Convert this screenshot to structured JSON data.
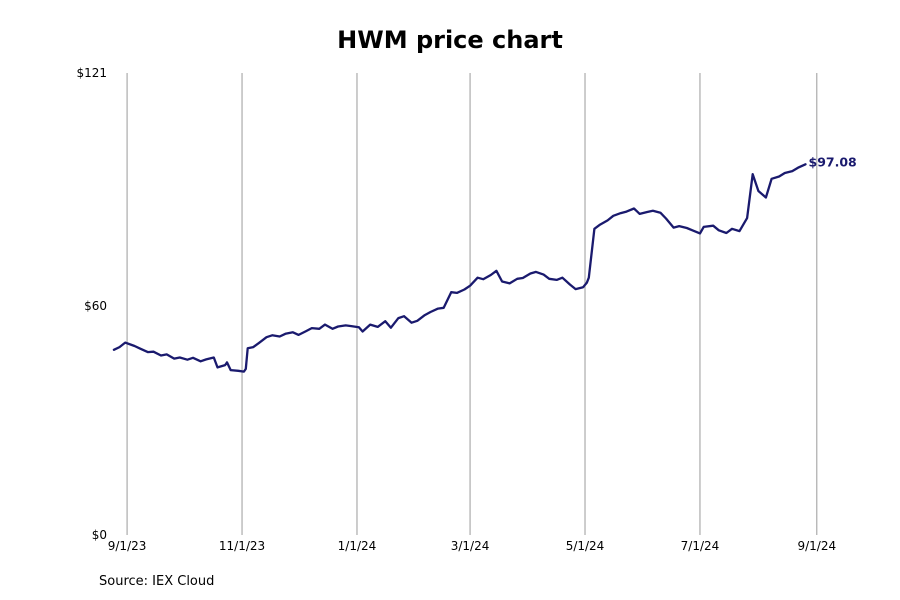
{
  "title": "HWM price chart",
  "source": "Source: IEX Cloud",
  "chart_data": {
    "type": "line",
    "title": "HWM price chart",
    "xlabel": "",
    "ylabel": "",
    "x_ticks": [
      "2023-09-01",
      "2023-11-01",
      "2024-01-01",
      "2024-03-01",
      "2024-05-01",
      "2024-07-01",
      "2024-09-01"
    ],
    "x_tick_labels": [
      "9/1/23",
      "11/1/23",
      "1/1/24",
      "3/1/24",
      "5/1/24",
      "7/1/24",
      "9/1/24"
    ],
    "y_ticks": [
      0,
      60,
      121
    ],
    "y_tick_labels": [
      "$0",
      "$60",
      "$121"
    ],
    "ylim": [
      0,
      121
    ],
    "xlim": [
      "2023-08-24",
      "2024-09-08"
    ],
    "grid": "vertical",
    "line_color": "#1a1a6e",
    "end_label": "$97.08",
    "series": [
      {
        "points": [
          [
            "2023-08-25",
            48.5
          ],
          [
            "2023-08-28",
            49.2
          ],
          [
            "2023-08-31",
            50.4
          ],
          [
            "2023-09-05",
            49.5
          ],
          [
            "2023-09-08",
            48.8
          ],
          [
            "2023-09-12",
            47.9
          ],
          [
            "2023-09-15",
            48.0
          ],
          [
            "2023-09-19",
            47.0
          ],
          [
            "2023-09-22",
            47.3
          ],
          [
            "2023-09-26",
            46.2
          ],
          [
            "2023-09-29",
            46.5
          ],
          [
            "2023-10-03",
            45.9
          ],
          [
            "2023-10-06",
            46.4
          ],
          [
            "2023-10-10",
            45.5
          ],
          [
            "2023-10-13",
            46.0
          ],
          [
            "2023-10-17",
            46.5
          ],
          [
            "2023-10-19",
            43.9
          ],
          [
            "2023-10-23",
            44.5
          ],
          [
            "2023-10-24",
            45.2
          ],
          [
            "2023-10-26",
            43.2
          ],
          [
            "2023-10-30",
            43.0
          ],
          [
            "2023-11-02",
            42.8
          ],
          [
            "2023-11-03",
            43.5
          ],
          [
            "2023-11-04",
            48.9
          ],
          [
            "2023-11-07",
            49.2
          ],
          [
            "2023-11-10",
            50.3
          ],
          [
            "2023-11-14",
            51.8
          ],
          [
            "2023-11-17",
            52.3
          ],
          [
            "2023-11-21",
            52.0
          ],
          [
            "2023-11-24",
            52.7
          ],
          [
            "2023-11-28",
            53.1
          ],
          [
            "2023-12-01",
            52.4
          ],
          [
            "2023-12-05",
            53.4
          ],
          [
            "2023-12-08",
            54.2
          ],
          [
            "2023-12-12",
            54.0
          ],
          [
            "2023-12-15",
            55.1
          ],
          [
            "2023-12-19",
            54.0
          ],
          [
            "2023-12-22",
            54.6
          ],
          [
            "2023-12-26",
            54.9
          ],
          [
            "2023-12-29",
            54.7
          ],
          [
            "2024-01-02",
            54.4
          ],
          [
            "2024-01-04",
            53.3
          ],
          [
            "2024-01-08",
            55.1
          ],
          [
            "2024-01-12",
            54.5
          ],
          [
            "2024-01-16",
            56.0
          ],
          [
            "2024-01-19",
            54.3
          ],
          [
            "2024-01-23",
            56.8
          ],
          [
            "2024-01-26",
            57.3
          ],
          [
            "2024-01-30",
            55.6
          ],
          [
            "2024-02-02",
            56.1
          ],
          [
            "2024-02-06",
            57.6
          ],
          [
            "2024-02-09",
            58.4
          ],
          [
            "2024-02-13",
            59.3
          ],
          [
            "2024-02-16",
            59.5
          ],
          [
            "2024-02-20",
            63.6
          ],
          [
            "2024-02-23",
            63.4
          ],
          [
            "2024-02-27",
            64.3
          ],
          [
            "2024-03-01",
            65.3
          ],
          [
            "2024-03-05",
            67.4
          ],
          [
            "2024-03-08",
            67.0
          ],
          [
            "2024-03-12",
            68.1
          ],
          [
            "2024-03-15",
            69.2
          ],
          [
            "2024-03-18",
            66.4
          ],
          [
            "2024-03-22",
            65.9
          ],
          [
            "2024-03-26",
            67.1
          ],
          [
            "2024-03-29",
            67.3
          ],
          [
            "2024-04-02",
            68.5
          ],
          [
            "2024-04-05",
            68.9
          ],
          [
            "2024-04-09",
            68.2
          ],
          [
            "2024-04-12",
            67.1
          ],
          [
            "2024-04-16",
            66.8
          ],
          [
            "2024-04-19",
            67.4
          ],
          [
            "2024-04-23",
            65.6
          ],
          [
            "2024-04-26",
            64.4
          ],
          [
            "2024-04-30",
            64.9
          ],
          [
            "2024-05-02",
            66.1
          ],
          [
            "2024-05-03",
            67.4
          ],
          [
            "2024-05-06",
            80.2
          ],
          [
            "2024-05-09",
            81.3
          ],
          [
            "2024-05-13",
            82.4
          ],
          [
            "2024-05-16",
            83.6
          ],
          [
            "2024-05-20",
            84.3
          ],
          [
            "2024-05-23",
            84.7
          ],
          [
            "2024-05-27",
            85.5
          ],
          [
            "2024-05-30",
            84.1
          ],
          [
            "2024-06-03",
            84.6
          ],
          [
            "2024-06-06",
            84.9
          ],
          [
            "2024-06-10",
            84.4
          ],
          [
            "2024-06-13",
            82.9
          ],
          [
            "2024-06-17",
            80.5
          ],
          [
            "2024-06-20",
            80.9
          ],
          [
            "2024-06-24",
            80.4
          ],
          [
            "2024-06-27",
            79.8
          ],
          [
            "2024-07-01",
            79.0
          ],
          [
            "2024-07-03",
            80.7
          ],
          [
            "2024-07-08",
            81.0
          ],
          [
            "2024-07-11",
            79.8
          ],
          [
            "2024-07-15",
            79.1
          ],
          [
            "2024-07-18",
            80.2
          ],
          [
            "2024-07-22",
            79.6
          ],
          [
            "2024-07-26",
            83.0
          ],
          [
            "2024-07-29",
            94.5
          ],
          [
            "2024-08-01",
            90.1
          ],
          [
            "2024-08-05",
            88.4
          ],
          [
            "2024-08-08",
            93.3
          ],
          [
            "2024-08-12",
            93.9
          ],
          [
            "2024-08-15",
            94.8
          ],
          [
            "2024-08-19",
            95.3
          ],
          [
            "2024-08-22",
            96.2
          ],
          [
            "2024-08-26",
            97.08
          ]
        ]
      }
    ]
  }
}
